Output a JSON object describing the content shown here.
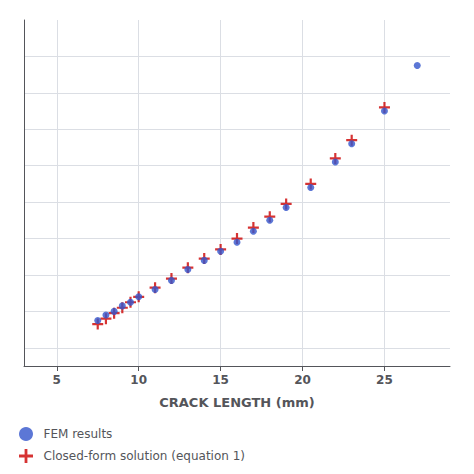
{
  "chart_data": {
    "type": "scatter",
    "xlabel": "CRACK LENGTH (mm)",
    "series": [
      {
        "name": "FEM results",
        "color": "#3355cc",
        "marker": "circle",
        "x": [
          7.5,
          8.0,
          8.5,
          9.0,
          9.5,
          10.0,
          11.0,
          12.0,
          13.0,
          14.0,
          15.0,
          16.0,
          17.0,
          18.0,
          19.0,
          20.5,
          22.0,
          23.0,
          25.0,
          27.0
        ],
        "values": [
          1.55,
          1.58,
          1.6,
          1.63,
          1.65,
          1.68,
          1.72,
          1.77,
          1.83,
          1.88,
          1.93,
          1.98,
          2.04,
          2.1,
          2.17,
          2.28,
          2.42,
          2.52,
          2.7,
          2.95
        ]
      },
      {
        "name": "Closed-form solution (equation 1)",
        "color": "#cc0000",
        "marker": "plus",
        "x": [
          7.5,
          8.0,
          8.5,
          9.0,
          9.5,
          10.0,
          11.0,
          12.0,
          13.0,
          14.0,
          15.0,
          16.0,
          17.0,
          18.0,
          19.0,
          20.5,
          22.0,
          23.0,
          25.0
        ],
        "values": [
          1.53,
          1.56,
          1.59,
          1.62,
          1.65,
          1.68,
          1.73,
          1.78,
          1.84,
          1.89,
          1.94,
          2.0,
          2.06,
          2.12,
          2.19,
          2.3,
          2.44,
          2.54,
          2.72
        ]
      }
    ],
    "xlim": [
      3,
      29
    ],
    "ylim": [
      1.3,
      3.2
    ],
    "xticks": [
      5,
      10,
      15,
      20,
      25
    ],
    "yticks": [
      1.4,
      1.6,
      1.8,
      2.0,
      2.2,
      2.4,
      2.6,
      2.8,
      3.0
    ],
    "tick_labels": "x",
    "grid": true,
    "legend": "lower left"
  }
}
